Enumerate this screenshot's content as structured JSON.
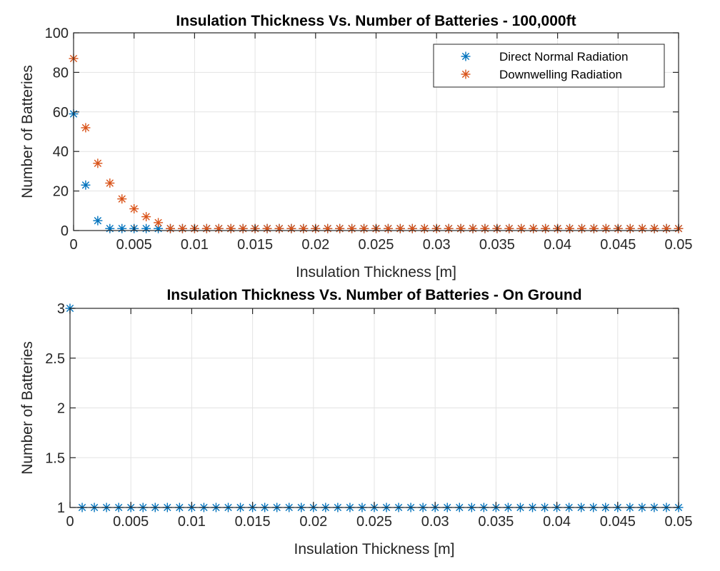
{
  "chart_data": [
    {
      "type": "scatter",
      "title": "Insulation Thickness Vs. Number of Batteries - 100,000ft",
      "xlabel": "Insulation Thickness [m]",
      "ylabel": "Number of Batteries",
      "xlim": [
        0,
        0.05
      ],
      "ylim": [
        0,
        100
      ],
      "xticks": [
        0,
        0.005,
        0.01,
        0.015,
        0.02,
        0.025,
        0.03,
        0.035,
        0.04,
        0.045,
        0.05
      ],
      "xtick_labels": [
        "0",
        "0.005",
        "0.01",
        "0.015",
        "0.02",
        "0.025",
        "0.03",
        "0.035",
        "0.04",
        "0.045",
        "0.05"
      ],
      "yticks": [
        0,
        20,
        40,
        60,
        80,
        100
      ],
      "ytick_labels": [
        "0",
        "20",
        "40",
        "60",
        "80",
        "100"
      ],
      "grid": true,
      "legend": {
        "placement": "top-right",
        "entries": [
          "Direct Normal Radiation",
          "Downwelling Radiation"
        ]
      },
      "marker": "asterisk",
      "series": [
        {
          "name": "Direct Normal Radiation",
          "color": "#0072BD",
          "x": [
            0,
            0.001,
            0.002,
            0.003,
            0.004,
            0.005,
            0.006,
            0.007,
            0.008,
            0.009,
            0.01,
            0.011,
            0.012,
            0.013,
            0.014,
            0.015,
            0.016,
            0.017,
            0.018,
            0.019,
            0.02,
            0.021,
            0.022,
            0.023,
            0.024,
            0.025,
            0.026,
            0.027,
            0.028,
            0.029,
            0.03,
            0.031,
            0.032,
            0.033,
            0.034,
            0.035,
            0.036,
            0.037,
            0.038,
            0.039,
            0.04,
            0.041,
            0.042,
            0.043,
            0.044,
            0.045,
            0.046,
            0.047,
            0.048,
            0.049,
            0.05
          ],
          "values": [
            59,
            23,
            5,
            1,
            1,
            1,
            1,
            1,
            1,
            1,
            1,
            1,
            1,
            1,
            1,
            1,
            1,
            1,
            1,
            1,
            1,
            1,
            1,
            1,
            1,
            1,
            1,
            1,
            1,
            1,
            1,
            1,
            1,
            1,
            1,
            1,
            1,
            1,
            1,
            1,
            1,
            1,
            1,
            1,
            1,
            1,
            1,
            1,
            1,
            1,
            1
          ]
        },
        {
          "name": "Downwelling Radiation",
          "color": "#D95319",
          "x": [
            0,
            0.001,
            0.002,
            0.003,
            0.004,
            0.005,
            0.006,
            0.007,
            0.008,
            0.009,
            0.01,
            0.011,
            0.012,
            0.013,
            0.014,
            0.015,
            0.016,
            0.017,
            0.018,
            0.019,
            0.02,
            0.021,
            0.022,
            0.023,
            0.024,
            0.025,
            0.026,
            0.027,
            0.028,
            0.029,
            0.03,
            0.031,
            0.032,
            0.033,
            0.034,
            0.035,
            0.036,
            0.037,
            0.038,
            0.039,
            0.04,
            0.041,
            0.042,
            0.043,
            0.044,
            0.045,
            0.046,
            0.047,
            0.048,
            0.049,
            0.05
          ],
          "values": [
            87,
            52,
            34,
            24,
            16,
            11,
            7,
            4,
            1,
            1,
            1,
            1,
            1,
            1,
            1,
            1,
            1,
            1,
            1,
            1,
            1,
            1,
            1,
            1,
            1,
            1,
            1,
            1,
            1,
            1,
            1,
            1,
            1,
            1,
            1,
            1,
            1,
            1,
            1,
            1,
            1,
            1,
            1,
            1,
            1,
            1,
            1,
            1,
            1,
            1,
            1
          ]
        }
      ]
    },
    {
      "type": "scatter",
      "title": "Insulation Thickness Vs. Number of Batteries - On Ground",
      "xlabel": "Insulation Thickness [m]",
      "ylabel": "Number of Batteries",
      "xlim": [
        0,
        0.05
      ],
      "ylim": [
        1,
        3
      ],
      "xticks": [
        0,
        0.005,
        0.01,
        0.015,
        0.02,
        0.025,
        0.03,
        0.035,
        0.04,
        0.045,
        0.05
      ],
      "xtick_labels": [
        "0",
        "0.005",
        "0.01",
        "0.015",
        "0.02",
        "0.025",
        "0.03",
        "0.035",
        "0.04",
        "0.045",
        "0.05"
      ],
      "yticks": [
        1,
        1.5,
        2,
        2.5,
        3
      ],
      "ytick_labels": [
        "1",
        "1.5",
        "2",
        "2.5",
        "3"
      ],
      "grid": true,
      "legend": null,
      "marker": "asterisk",
      "series": [
        {
          "name": "Direct Normal Radiation",
          "color": "#0072BD",
          "x": [
            0,
            0.001,
            0.002,
            0.003,
            0.004,
            0.005,
            0.006,
            0.007,
            0.008,
            0.009,
            0.01,
            0.011,
            0.012,
            0.013,
            0.014,
            0.015,
            0.016,
            0.017,
            0.018,
            0.019,
            0.02,
            0.021,
            0.022,
            0.023,
            0.024,
            0.025,
            0.026,
            0.027,
            0.028,
            0.029,
            0.03,
            0.031,
            0.032,
            0.033,
            0.034,
            0.035,
            0.036,
            0.037,
            0.038,
            0.039,
            0.04,
            0.041,
            0.042,
            0.043,
            0.044,
            0.045,
            0.046,
            0.047,
            0.048,
            0.049,
            0.05
          ],
          "values": [
            3,
            1,
            1,
            1,
            1,
            1,
            1,
            1,
            1,
            1,
            1,
            1,
            1,
            1,
            1,
            1,
            1,
            1,
            1,
            1,
            1,
            1,
            1,
            1,
            1,
            1,
            1,
            1,
            1,
            1,
            1,
            1,
            1,
            1,
            1,
            1,
            1,
            1,
            1,
            1,
            1,
            1,
            1,
            1,
            1,
            1,
            1,
            1,
            1,
            1,
            1
          ]
        }
      ]
    }
  ]
}
